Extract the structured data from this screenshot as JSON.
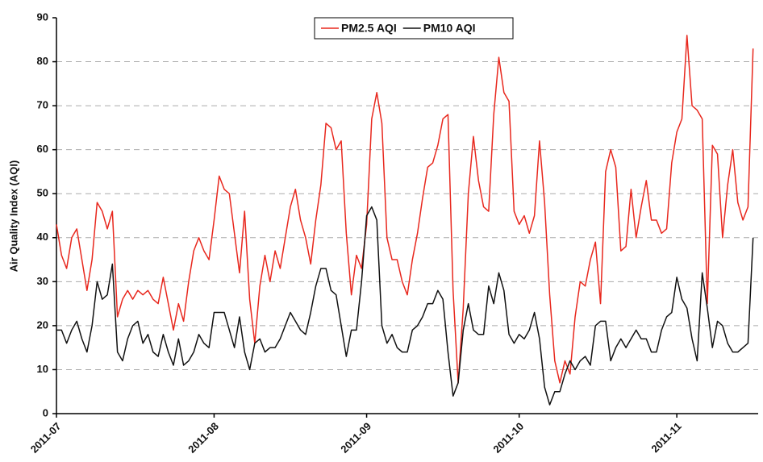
{
  "chart_data": {
    "type": "line",
    "y_label": "Air Quality Index (AQI)",
    "xlim": [
      0,
      138
    ],
    "xticks": [
      {
        "value": 0,
        "label": "2011-07"
      },
      {
        "value": 31,
        "label": "2011-08"
      },
      {
        "value": 61,
        "label": "2011-09"
      },
      {
        "value": 91,
        "label": "2011-10"
      },
      {
        "value": 122,
        "label": "2011-11"
      }
    ],
    "ylim": [
      0,
      90
    ],
    "yticks": [
      0,
      10,
      20,
      30,
      40,
      50,
      60,
      70,
      80,
      90
    ],
    "grid": true,
    "legend": "top",
    "series": [
      {
        "name": "PM2.5 AQI",
        "color": "#e8281e",
        "values": [
          43,
          36,
          33,
          40,
          42,
          35,
          28,
          35,
          48,
          46,
          42,
          46,
          22,
          26,
          28,
          26,
          28,
          27,
          28,
          26,
          25,
          31,
          25,
          19,
          25,
          21,
          30,
          37,
          40,
          37,
          35,
          44,
          54,
          51,
          50,
          41,
          32,
          46,
          26,
          16,
          29,
          36,
          30,
          37,
          33,
          40,
          47,
          51,
          44,
          40,
          34,
          44,
          52,
          66,
          65,
          60,
          62,
          41,
          27,
          36,
          33,
          43,
          67,
          73,
          66,
          40,
          35,
          35,
          30,
          27,
          35,
          41,
          49,
          56,
          57,
          61,
          67,
          68,
          28,
          7,
          24,
          50,
          63,
          53,
          47,
          46,
          68,
          81,
          73,
          71,
          46,
          43,
          45,
          41,
          45,
          62,
          48,
          27,
          12,
          7,
          12,
          9,
          22,
          30,
          29,
          35,
          39,
          25,
          55,
          60,
          56,
          37,
          38,
          51,
          40,
          47,
          53,
          44,
          44,
          41,
          42,
          57,
          64,
          67,
          86,
          70,
          69,
          67,
          25,
          61,
          59,
          40,
          52,
          60,
          48,
          44,
          47,
          83
        ]
      },
      {
        "name": "PM10 AQI",
        "color": "#111111",
        "values": [
          19,
          19,
          16,
          19,
          21,
          17,
          14,
          20,
          30,
          26,
          27,
          34,
          14,
          12,
          17,
          20,
          21,
          16,
          18,
          14,
          13,
          18,
          14,
          11,
          17,
          11,
          12,
          14,
          18,
          16,
          15,
          23,
          23,
          23,
          19,
          15,
          22,
          14,
          10,
          16,
          17,
          14,
          15,
          15,
          17,
          20,
          23,
          21,
          19,
          18,
          23,
          29,
          33,
          33,
          28,
          27,
          20,
          13,
          19,
          19,
          30,
          45,
          47,
          44,
          20,
          16,
          18,
          15,
          14,
          14,
          19,
          20,
          22,
          25,
          25,
          28,
          26,
          14,
          4,
          7,
          19,
          25,
          19,
          18,
          18,
          29,
          25,
          32,
          28,
          18,
          16,
          18,
          17,
          19,
          23,
          17,
          6,
          2,
          5,
          5,
          9,
          12,
          10,
          12,
          13,
          11,
          20,
          21,
          21,
          12,
          15,
          17,
          15,
          17,
          19,
          17,
          17,
          14,
          14,
          19,
          22,
          23,
          31,
          26,
          24,
          17,
          12,
          32,
          24,
          15,
          21,
          20,
          16,
          14,
          14,
          15,
          16,
          40
        ]
      }
    ]
  }
}
